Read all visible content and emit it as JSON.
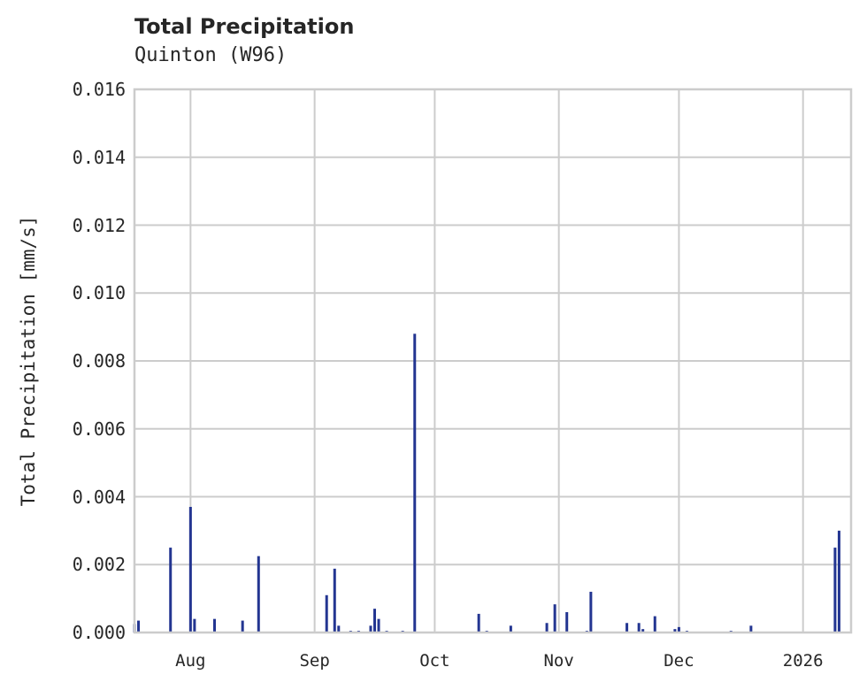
{
  "header": {
    "title": "Total Precipitation",
    "subtitle": "Quinton (W96)"
  },
  "axes": {
    "ylabel": "Total Precipitation [mm/s]",
    "yticks": [
      "0.000",
      "0.002",
      "0.004",
      "0.006",
      "0.008",
      "0.010",
      "0.012",
      "0.014",
      "0.016"
    ],
    "xticks": [
      "Aug",
      "Sep",
      "Oct",
      "Nov",
      "Dec",
      "2026"
    ]
  },
  "colors": {
    "series": "#233591",
    "grid": "#cccccc",
    "frame": "#cccccc",
    "text": "#262626"
  },
  "chart_data": {
    "type": "bar",
    "title": "Total Precipitation",
    "subtitle": "Quinton (W96)",
    "xlabel": "",
    "ylabel": "Total Precipitation [mm/s]",
    "ylim": [
      0,
      0.016
    ],
    "xlim": [
      "2025-07-18",
      "2026-01-13"
    ],
    "x_tick_labels": [
      "Aug",
      "Sep",
      "Oct",
      "Nov",
      "Dec",
      "2026"
    ],
    "y_tick_labels": [
      "0.000",
      "0.002",
      "0.004",
      "0.006",
      "0.008",
      "0.010",
      "0.012",
      "0.014",
      "0.016"
    ],
    "grid": true,
    "legend": null,
    "series": [
      {
        "name": "Total Precipitation",
        "color": "#233591",
        "points": [
          {
            "date": "2025-07-18",
            "value": 0.00025
          },
          {
            "date": "2025-07-19",
            "value": 0.00035
          },
          {
            "date": "2025-07-27",
            "value": 0.0025
          },
          {
            "date": "2025-08-01",
            "value": 0.0037
          },
          {
            "date": "2025-08-02",
            "value": 0.0004
          },
          {
            "date": "2025-08-07",
            "value": 0.0004
          },
          {
            "date": "2025-08-14",
            "value": 0.00035
          },
          {
            "date": "2025-08-18",
            "value": 0.00225
          },
          {
            "date": "2025-09-04",
            "value": 0.0011
          },
          {
            "date": "2025-09-06",
            "value": 0.00188
          },
          {
            "date": "2025-09-07",
            "value": 0.0002
          },
          {
            "date": "2025-09-10",
            "value": 5e-05
          },
          {
            "date": "2025-09-12",
            "value": 5e-05
          },
          {
            "date": "2025-09-15",
            "value": 0.0002
          },
          {
            "date": "2025-09-16",
            "value": 0.0007
          },
          {
            "date": "2025-09-17",
            "value": 0.0004
          },
          {
            "date": "2025-09-19",
            "value": 5e-05
          },
          {
            "date": "2025-09-23",
            "value": 5e-05
          },
          {
            "date": "2025-09-26",
            "value": 0.0088
          },
          {
            "date": "2025-10-12",
            "value": 0.00055
          },
          {
            "date": "2025-10-14",
            "value": 5e-05
          },
          {
            "date": "2025-10-20",
            "value": 0.0002
          },
          {
            "date": "2025-10-29",
            "value": 0.00028
          },
          {
            "date": "2025-10-31",
            "value": 0.00083
          },
          {
            "date": "2025-11-03",
            "value": 0.0006
          },
          {
            "date": "2025-11-08",
            "value": 5e-05
          },
          {
            "date": "2025-11-09",
            "value": 0.0012
          },
          {
            "date": "2025-11-18",
            "value": 0.00028
          },
          {
            "date": "2025-11-21",
            "value": 0.00028
          },
          {
            "date": "2025-11-22",
            "value": 0.0001
          },
          {
            "date": "2025-11-25",
            "value": 0.00048
          },
          {
            "date": "2025-11-30",
            "value": 0.0001
          },
          {
            "date": "2025-12-01",
            "value": 0.00016
          },
          {
            "date": "2025-12-03",
            "value": 5e-05
          },
          {
            "date": "2025-12-14",
            "value": 5e-05
          },
          {
            "date": "2025-12-19",
            "value": 0.0002
          },
          {
            "date": "2026-01-09",
            "value": 0.0025
          },
          {
            "date": "2026-01-10",
            "value": 0.003
          }
        ]
      }
    ]
  }
}
